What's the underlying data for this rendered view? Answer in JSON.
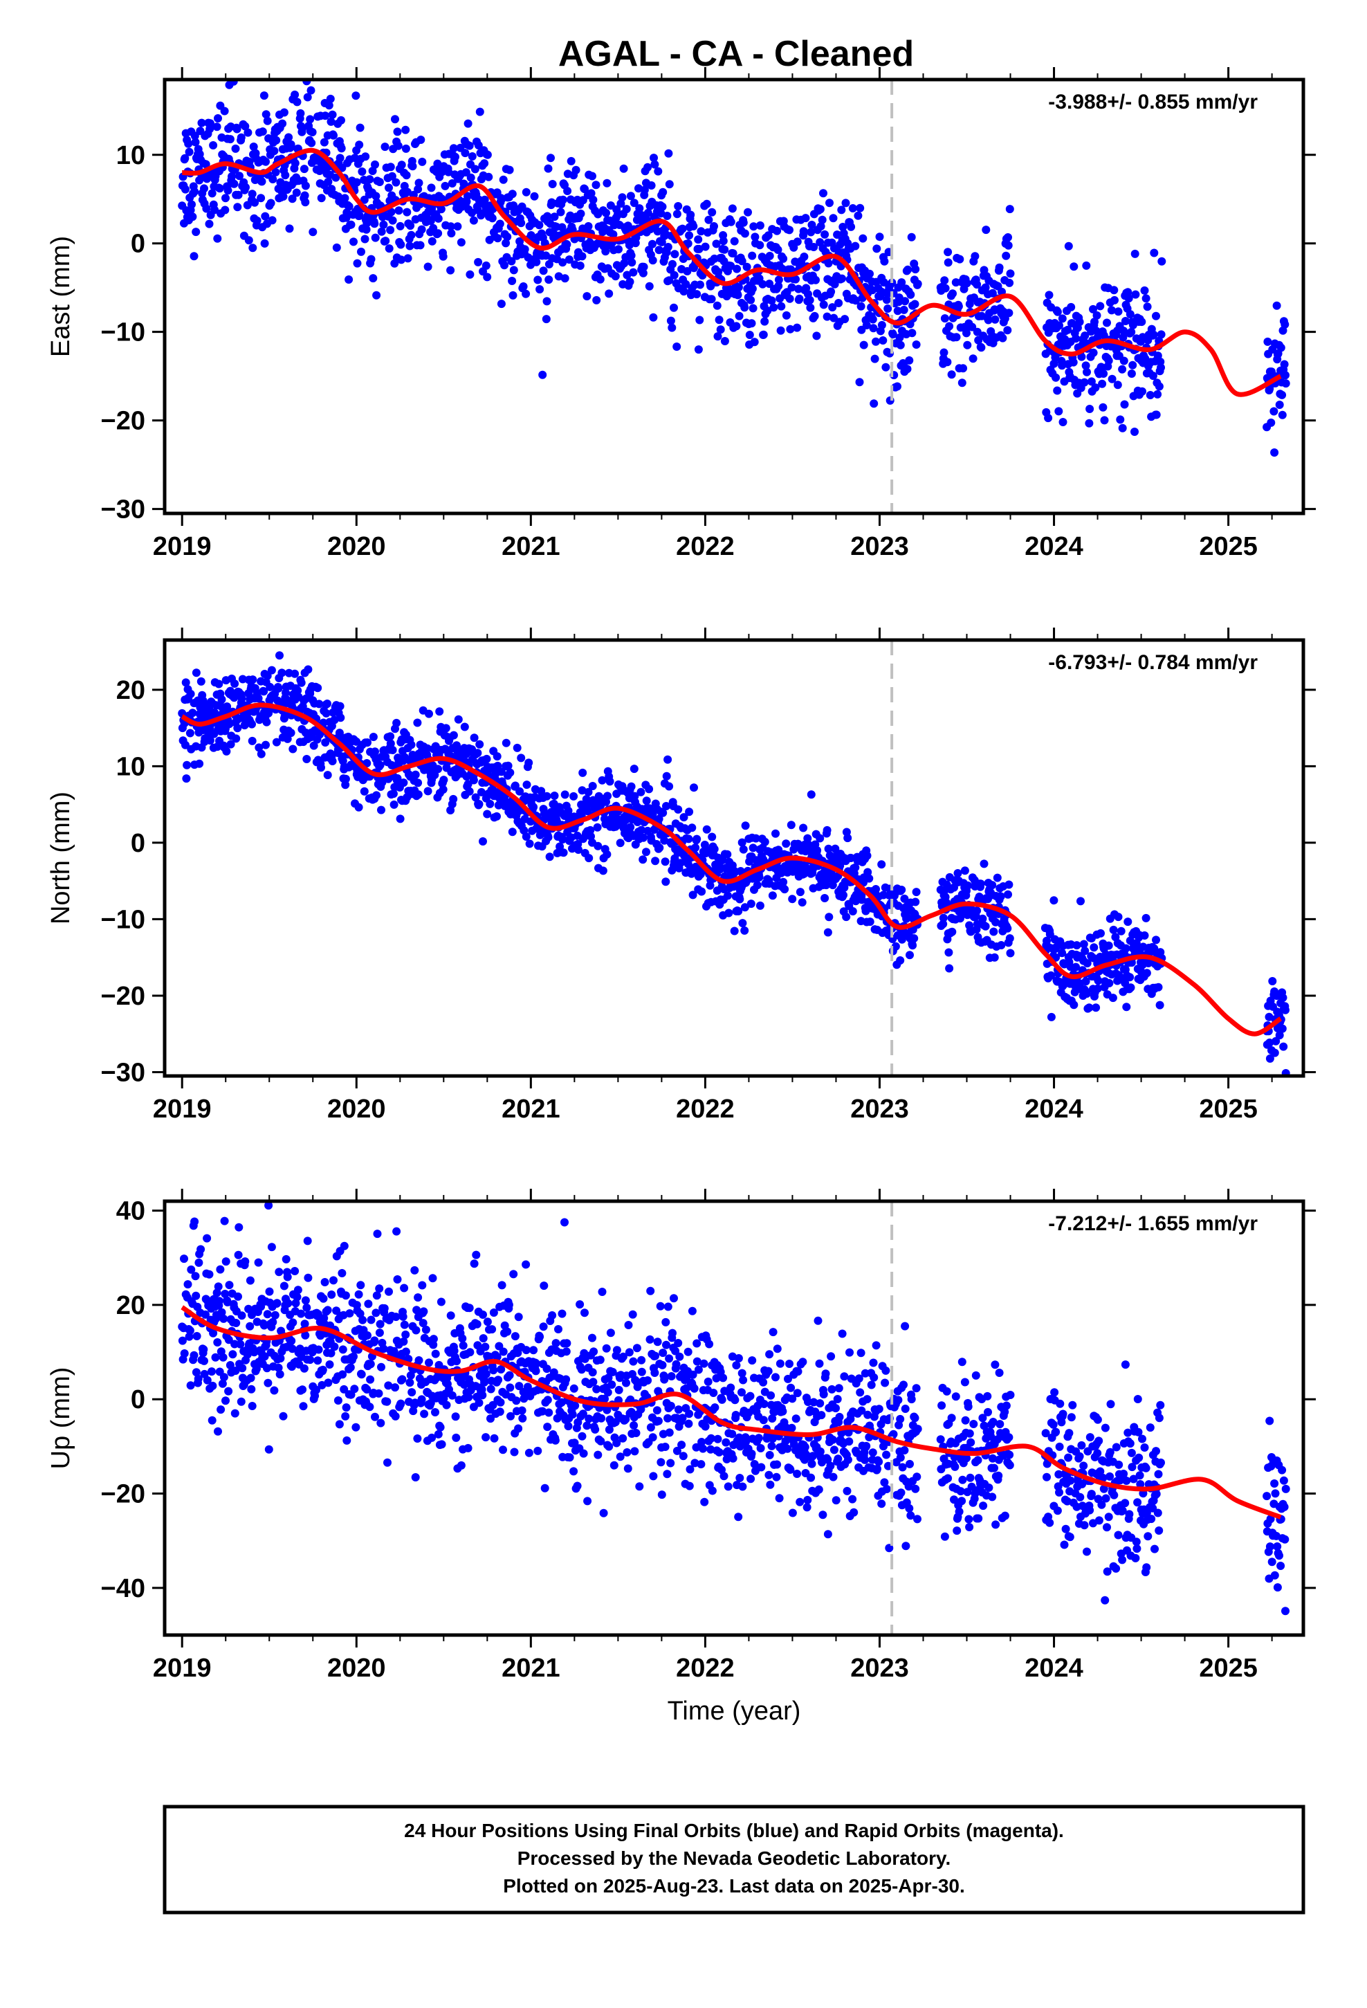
{
  "title": "AGAL  - CA - Cleaned",
  "footer": {
    "lines": [
      "24 Hour Positions Using Final Orbits (blue) and Rapid Orbits (magenta).",
      "Processed by the Nevada Geodetic Laboratory.",
      "Plotted on 2025-Aug-23. Last data on 2025-Apr-30."
    ]
  },
  "colors": {
    "points": "#0000ff",
    "fit": "#ff0000",
    "dashed_line": "#c0c0c0"
  },
  "chart_data": [
    {
      "type": "scatter",
      "ylabel": "East (mm)",
      "rate_label": "-3.988+/- 0.855 mm/yr",
      "xlim": [
        2018.9,
        2025.43
      ],
      "ylim": [
        -30.5,
        18.5
      ],
      "xticks": [
        2019,
        2020,
        2021,
        2022,
        2023,
        2024,
        2025
      ],
      "yticks": [
        10,
        0,
        -10,
        -20,
        -30
      ],
      "ytick_labels": [
        "10",
        "0",
        "−10",
        "−20",
        "−30"
      ],
      "vline": 2023.07,
      "series": [
        {
          "kind": "fit",
          "x": [
            2019.0,
            2019.1,
            2019.25,
            2019.45,
            2019.55,
            2019.75,
            2019.9,
            2020.0,
            2020.1,
            2020.3,
            2020.5,
            2020.7,
            2020.85,
            2021.05,
            2021.25,
            2021.5,
            2021.75,
            2021.9,
            2022.1,
            2022.3,
            2022.5,
            2022.75,
            2022.95,
            2023.1,
            2023.3,
            2023.5,
            2023.75,
            2023.95,
            2024.1,
            2024.3,
            2024.55,
            2024.75,
            2024.9,
            2025.05,
            2025.3
          ],
          "y": [
            8,
            8,
            9,
            8,
            9,
            10.5,
            8,
            5,
            3.5,
            5,
            4.5,
            6.5,
            3,
            -0.5,
            1,
            0.5,
            2.5,
            -1,
            -4.5,
            -3,
            -3.5,
            -1.5,
            -6.5,
            -9,
            -7,
            -8,
            -6,
            -11,
            -12.5,
            -11,
            -12,
            -10,
            -12,
            -17,
            -15
          ]
        },
        {
          "kind": "observations",
          "trend": {
            "start": 8.5,
            "slope": -3.99
          },
          "seasonal_amplitude": 1.5,
          "noise": 3.6,
          "segments": [
            [
              2019.0,
              2023.22
            ],
            [
              2023.35,
              2023.75
            ],
            [
              2023.95,
              2024.62
            ],
            [
              2025.22,
              2025.33
            ]
          ]
        }
      ]
    },
    {
      "type": "scatter",
      "ylabel": "North (mm)",
      "rate_label": "-6.793+/- 0.784 mm/yr",
      "xlim": [
        2018.9,
        2025.43
      ],
      "ylim": [
        -30.5,
        26.5
      ],
      "xticks": [
        2019,
        2020,
        2021,
        2022,
        2023,
        2024,
        2025
      ],
      "yticks": [
        20,
        10,
        0,
        -10,
        -20,
        -30
      ],
      "ytick_labels": [
        "20",
        "10",
        "0",
        "−10",
        "−20",
        "−30"
      ],
      "vline": 2023.07,
      "series": [
        {
          "kind": "fit",
          "x": [
            2019.0,
            2019.1,
            2019.25,
            2019.45,
            2019.7,
            2019.9,
            2020.1,
            2020.3,
            2020.5,
            2020.7,
            2020.9,
            2021.1,
            2021.3,
            2021.5,
            2021.75,
            2021.9,
            2022.1,
            2022.3,
            2022.5,
            2022.75,
            2022.95,
            2023.1,
            2023.3,
            2023.5,
            2023.75,
            2023.95,
            2024.1,
            2024.3,
            2024.55,
            2024.8,
            2025.0,
            2025.15,
            2025.3
          ],
          "y": [
            16.5,
            15.5,
            16.5,
            18,
            16.5,
            13,
            9,
            10,
            11,
            9,
            6,
            2,
            3,
            4.5,
            2,
            -1,
            -5,
            -3.5,
            -2,
            -3.5,
            -7,
            -11,
            -9.5,
            -8,
            -9.5,
            -14.5,
            -17.5,
            -16,
            -15,
            -18.5,
            -23,
            -25,
            -23
          ]
        },
        {
          "kind": "observations",
          "trend": {
            "start": 17.5,
            "slope": -6.79
          },
          "seasonal_amplitude": 2.2,
          "noise": 2.5,
          "segments": [
            [
              2019.0,
              2023.22
            ],
            [
              2023.35,
              2023.75
            ],
            [
              2023.95,
              2024.62
            ],
            [
              2025.22,
              2025.33
            ]
          ]
        }
      ]
    },
    {
      "type": "scatter",
      "ylabel": "Up (mm)",
      "rate_label": "-7.212+/- 1.655 mm/yr",
      "xlabel": "Time (year)",
      "xlim": [
        2018.9,
        2025.43
      ],
      "ylim": [
        -50,
        42
      ],
      "xticks": [
        2019,
        2020,
        2021,
        2022,
        2023,
        2024,
        2025
      ],
      "yticks": [
        40,
        20,
        0,
        -20,
        -40
      ],
      "ytick_labels": [
        "40",
        "20",
        "0",
        "−20",
        "−40"
      ],
      "vline": 2023.07,
      "series": [
        {
          "kind": "fit",
          "x": [
            2019.0,
            2019.2,
            2019.5,
            2019.8,
            2020.1,
            2020.4,
            2020.6,
            2020.8,
            2021.0,
            2021.3,
            2021.6,
            2021.85,
            2022.1,
            2022.3,
            2022.6,
            2022.85,
            2023.1,
            2023.3,
            2023.55,
            2023.85,
            2024.05,
            2024.3,
            2024.55,
            2024.85,
            2025.05,
            2025.3
          ],
          "y": [
            19.5,
            15,
            13,
            15,
            10,
            6.5,
            6,
            8,
            4,
            -0.5,
            -1,
            1,
            -5,
            -6.5,
            -7.5,
            -6,
            -9,
            -10.5,
            -11.5,
            -10,
            -14.5,
            -18,
            -19,
            -17,
            -21.5,
            -25
          ]
        },
        {
          "kind": "observations",
          "trend": {
            "start": 17,
            "slope": -7.21
          },
          "seasonal_amplitude": 2.0,
          "noise": 8.5,
          "segments": [
            [
              2019.0,
              2023.22
            ],
            [
              2023.35,
              2023.75
            ],
            [
              2023.95,
              2024.62
            ],
            [
              2025.22,
              2025.33
            ]
          ]
        }
      ]
    }
  ]
}
